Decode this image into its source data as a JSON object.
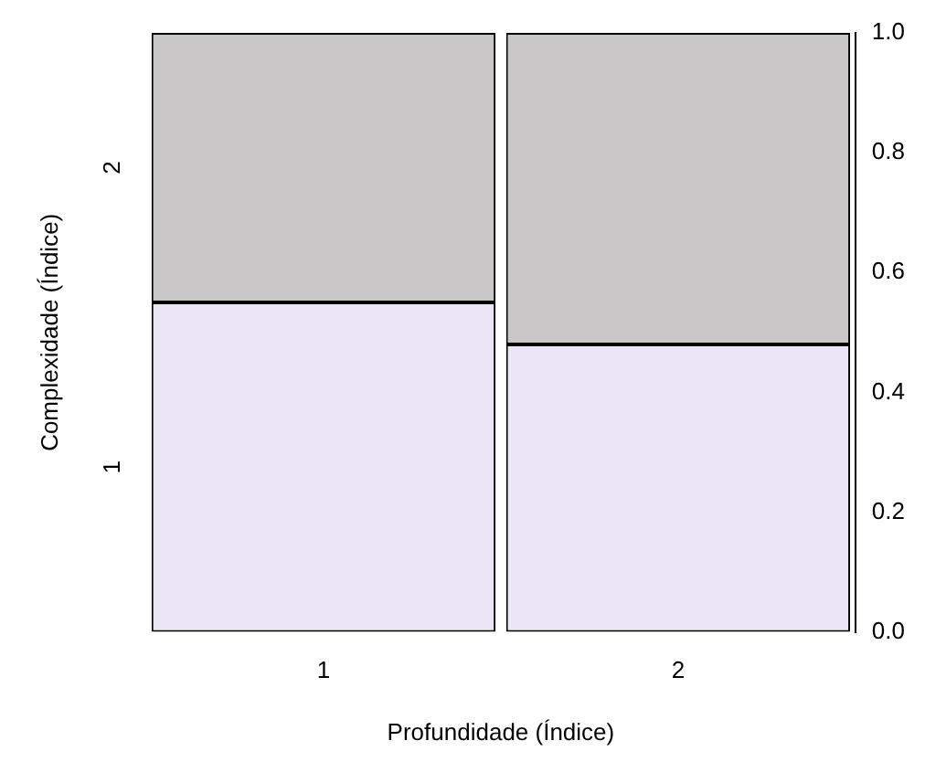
{
  "chart_data": {
    "type": "bar",
    "stacked": true,
    "xlabel": "Profundidade (Índice)",
    "ylabel": "Complexidade (Índice)",
    "categories": [
      "1",
      "2"
    ],
    "series": [
      {
        "name": "1",
        "color": "#ebe6f5",
        "values": [
          0.55,
          0.48
        ]
      },
      {
        "name": "2",
        "color": "#c8c6c6",
        "values": [
          0.45,
          0.52
        ]
      }
    ],
    "ylim": [
      0,
      1
    ],
    "yticks": [
      {
        "value": 0,
        "label": "0.0"
      },
      {
        "value": 0.2,
        "label": "0.2"
      },
      {
        "value": 0.4,
        "label": "0.4"
      },
      {
        "value": 0.6,
        "label": "0.6"
      },
      {
        "value": 0.8,
        "label": "0.8"
      },
      {
        "value": 1,
        "label": "1.0"
      }
    ],
    "grid": false,
    "legend": false
  }
}
